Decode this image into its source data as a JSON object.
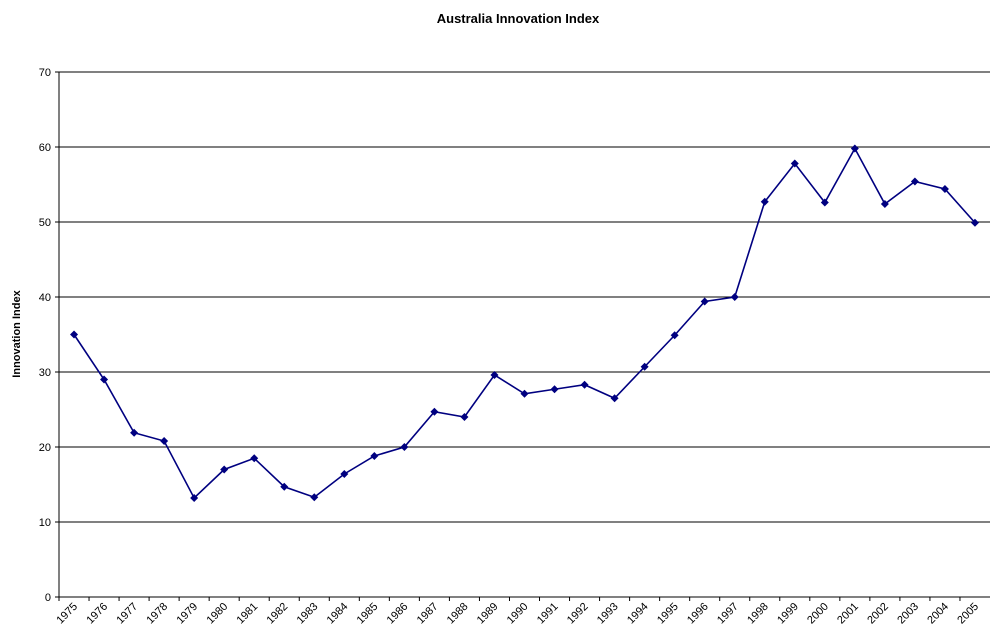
{
  "chart_data": {
    "type": "line",
    "title": "Australia Innovation Index",
    "y_label": "Innovation Index",
    "categories": [
      "1975",
      "1976",
      "1977",
      "1978",
      "1979",
      "1980",
      "1981",
      "1982",
      "1983",
      "1984",
      "1985",
      "1986",
      "1987",
      "1988",
      "1989",
      "1990",
      "1991",
      "1992",
      "1993",
      "1994",
      "1995",
      "1996",
      "1997",
      "1998",
      "1999",
      "2000",
      "2001",
      "2002",
      "2003",
      "2004",
      "2005"
    ],
    "values": [
      35.0,
      29.0,
      21.9,
      20.8,
      13.2,
      17.0,
      18.5,
      14.7,
      13.3,
      16.4,
      18.8,
      20.0,
      24.7,
      24.0,
      29.6,
      27.1,
      27.7,
      28.3,
      26.5,
      30.7,
      34.9,
      39.4,
      40.0,
      52.7,
      57.8,
      52.6,
      59.8,
      52.4,
      55.4,
      54.4,
      49.9
    ],
    "color": "#000080",
    "ylim": [
      0,
      70
    ],
    "yticks": [
      0,
      10,
      20,
      30,
      40,
      50,
      60,
      70
    ],
    "grid": true
  }
}
